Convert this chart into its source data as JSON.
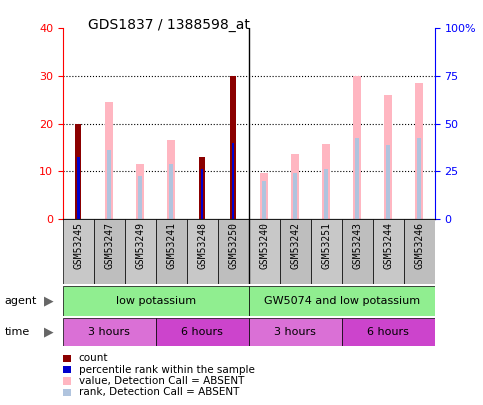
{
  "title": "GDS1837 / 1388598_at",
  "samples": [
    "GSM53245",
    "GSM53247",
    "GSM53249",
    "GSM53241",
    "GSM53248",
    "GSM53250",
    "GSM53240",
    "GSM53242",
    "GSM53251",
    "GSM53243",
    "GSM53244",
    "GSM53246"
  ],
  "count_values": [
    20,
    0,
    0,
    0,
    13,
    30,
    0,
    0,
    0,
    0,
    0,
    0
  ],
  "percentile_values": [
    13,
    0,
    0,
    0,
    10.5,
    16,
    0,
    0,
    0,
    0,
    0,
    0
  ],
  "value_absent": [
    0,
    24.5,
    11.5,
    16.5,
    0,
    0,
    9.5,
    13.5,
    15.8,
    30,
    26,
    28.5
  ],
  "rank_absent": [
    0,
    14.5,
    9,
    11.5,
    0,
    0,
    8,
    9.5,
    10.5,
    17,
    15.5,
    17
  ],
  "ylim_left": [
    0,
    40
  ],
  "ylim_right": [
    0,
    100
  ],
  "yticks_left": [
    0,
    10,
    20,
    30,
    40
  ],
  "yticks_right": [
    0,
    25,
    50,
    75,
    100
  ],
  "ytick_labels_right": [
    "0",
    "25",
    "50",
    "75",
    "100%"
  ],
  "color_count": "#8B0000",
  "color_percentile": "#0000CD",
  "color_value_absent": "#FFB6C1",
  "color_rank_absent": "#B0C4DE",
  "color_agent": "#90EE90",
  "color_time1": "#DA70D6",
  "color_time2": "#CC44CC",
  "figsize": [
    4.83,
    4.05
  ],
  "dpi": 100
}
